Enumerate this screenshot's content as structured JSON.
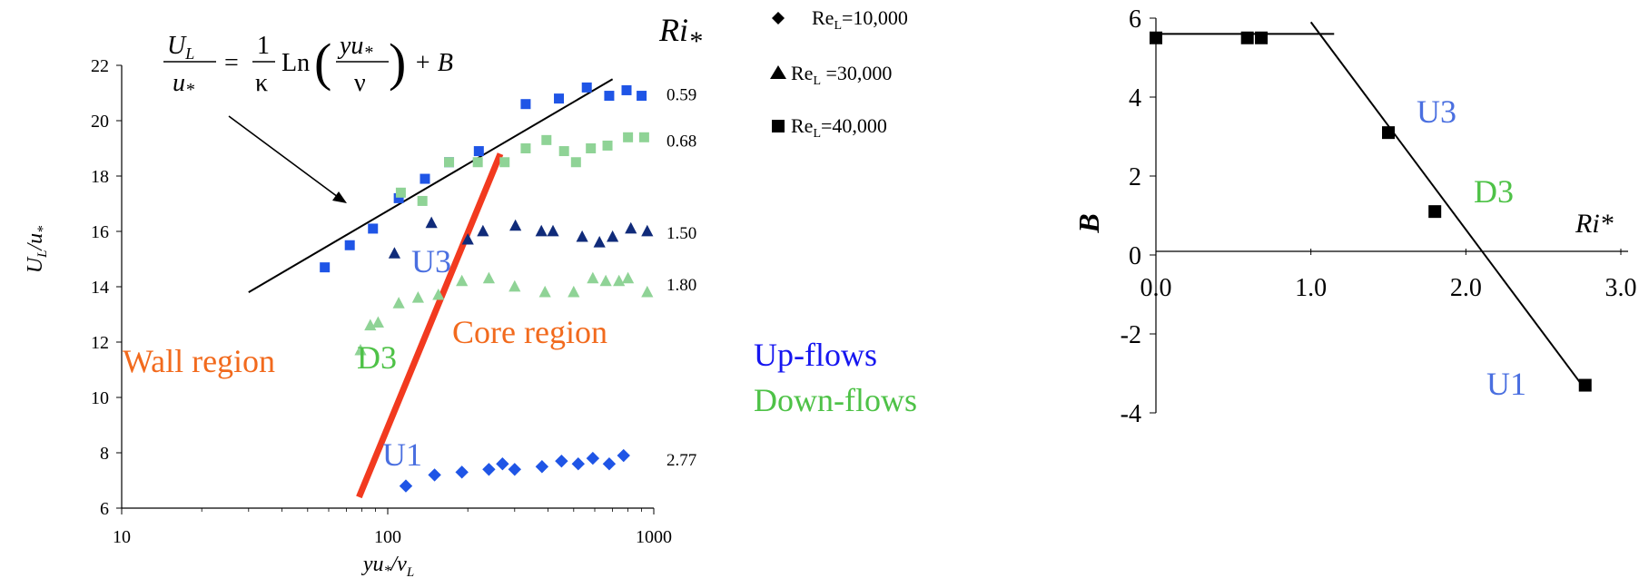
{
  "chart_data": [
    {
      "type": "scatter",
      "x_scale": "log",
      "xlim": [
        10,
        1000
      ],
      "ylim": [
        6,
        22
      ],
      "x_ticks": [
        "10",
        "100",
        "1000"
      ],
      "y_ticks": [
        "6",
        "8",
        "10",
        "12",
        "14",
        "16",
        "18",
        "20",
        "22"
      ],
      "xlabel": "yu*/νL",
      "ylabel": "UL/u*",
      "equation": {
        "lhs_num": "U",
        "lhs_num_sub": "L",
        "lhs_den": "u",
        "lhs_den_sub": "*",
        "eq": "=",
        "coef_num": "1",
        "coef_den": "κ",
        "fn": "Ln",
        "arg_num": "yu",
        "arg_num_sub": "*",
        "arg_den": "ν",
        "tail": "+ B"
      },
      "ri_header": "Ri",
      "ri_header_sub": "*",
      "series": [
        {
          "ri": "0.59",
          "marker": "square",
          "color": "#1f55e6",
          "x": [
            58,
            72,
            88,
            110,
            138,
            170,
            220,
            330,
            440,
            560,
            680,
            790,
            900
          ],
          "y": [
            14.7,
            15.5,
            16.1,
            17.2,
            17.9,
            18.5,
            18.9,
            20.6,
            20.8,
            21.2,
            20.9,
            21.1,
            20.9
          ]
        },
        {
          "ri": "0.68",
          "marker": "square",
          "color": "#8fd396",
          "x": [
            112,
            135,
            170,
            218,
            275,
            330,
            395,
            460,
            510,
            580,
            670,
            800,
            920
          ],
          "y": [
            17.4,
            17.1,
            18.5,
            18.5,
            18.5,
            19.0,
            19.3,
            18.9,
            18.5,
            19.0,
            19.1,
            19.4,
            19.4
          ]
        },
        {
          "ri": "1.50",
          "marker": "triangle",
          "color": "#102b7a",
          "x": [
            106,
            146,
            200,
            228,
            302,
            378,
            418,
            538,
            625,
            700,
            820,
            945
          ],
          "y": [
            15.2,
            16.3,
            15.7,
            16.0,
            16.2,
            16.0,
            16.0,
            15.8,
            15.6,
            15.8,
            16.1,
            16.0
          ]
        },
        {
          "ri": "1.80",
          "marker": "triangle",
          "color": "#8fd396",
          "x": [
            79,
            86,
            92,
            110,
            130,
            155,
            190,
            240,
            300,
            390,
            500,
            590,
            660,
            740,
            800,
            945
          ],
          "y": [
            11.7,
            12.6,
            12.7,
            13.4,
            13.6,
            13.7,
            14.2,
            14.3,
            14.0,
            13.8,
            13.8,
            14.3,
            14.2,
            14.2,
            14.3,
            13.8
          ]
        },
        {
          "ri": "2.77",
          "marker": "diamond",
          "color": "#1f55e6",
          "x": [
            117,
            150,
            190,
            240,
            270,
            300,
            380,
            450,
            520,
            590,
            680,
            770
          ],
          "y": [
            6.8,
            7.2,
            7.3,
            7.4,
            7.6,
            7.4,
            7.5,
            7.7,
            7.6,
            7.8,
            7.6,
            7.9
          ]
        }
      ],
      "fit_line": {
        "x": [
          30,
          700
        ],
        "y": [
          13.8,
          21.5
        ],
        "color": "#000000"
      },
      "boundary_line": {
        "x": [
          78,
          265
        ],
        "y": [
          6.4,
          18.8
        ],
        "color": "#f23a1f"
      },
      "labels": {
        "u3": "U3",
        "d3": "D3",
        "u1": "U1",
        "wall_region": "Wall region",
        "core_region": "Core region",
        "up_flows": "Up-flows",
        "down_flows": "Down-flows"
      },
      "colors": {
        "blue_label": "#4a6fe0",
        "green_label": "#4ec247",
        "orange": "#f26a1d",
        "up_flows": "#1616f0"
      }
    },
    {
      "type": "scatter",
      "xlim": [
        0,
        3.0
      ],
      "ylim": [
        -4,
        6
      ],
      "x_ticks": [
        "0.0",
        "1.0",
        "2.0",
        "3.0"
      ],
      "y_ticks": [
        "6",
        "4",
        "2",
        "0",
        "-2",
        "-4"
      ],
      "xlabel": "Ri*",
      "ylabel": "B",
      "points": {
        "x": [
          0.0,
          0.59,
          0.68,
          1.5,
          1.8,
          2.77
        ],
        "y": [
          5.5,
          5.5,
          5.5,
          3.1,
          1.1,
          -3.3
        ]
      },
      "line_flat": {
        "x": [
          0.0,
          1.15
        ],
        "y": [
          5.6,
          5.6
        ]
      },
      "line_slope": {
        "x": [
          1.0,
          2.75
        ],
        "y": [
          5.9,
          -3.3
        ]
      },
      "labels": {
        "u3": "U3",
        "d3": "D3",
        "u1": "U1"
      }
    }
  ],
  "legend": [
    {
      "marker": "diamond",
      "label": "Re",
      "sub": "L",
      "value": "=10,000"
    },
    {
      "marker": "triangle",
      "label": "Re",
      "sub": "L",
      "value": " =30,000"
    },
    {
      "marker": "square",
      "label": "Re",
      "sub": "L",
      "value": "=40,000"
    }
  ]
}
